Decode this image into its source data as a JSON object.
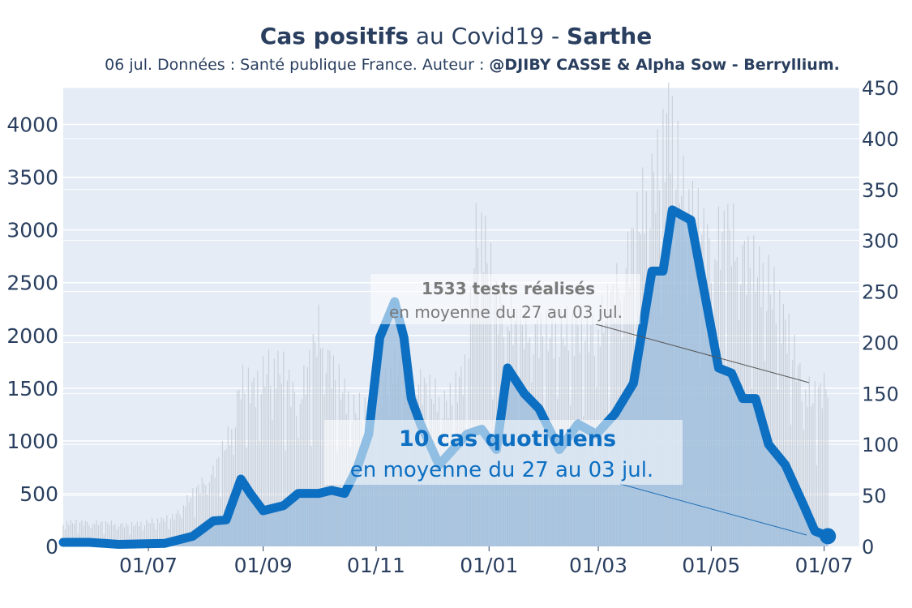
{
  "header": {
    "title_bold1": "Cas positifs",
    "title_mid": " au Covid19 - ",
    "title_bold2": "Sarthe",
    "subtitle_plain": "06 jul. Données : Santé publique France. Auteur : ",
    "subtitle_bold": "@DJIBY CASSE & Alpha Sow - Berryllium."
  },
  "annotations": {
    "tests": {
      "value_text": "1533 tests réalisés",
      "sub_text": "en moyenne du 27 au 03 jul."
    },
    "cases": {
      "value_text": "10 cas quotidiens",
      "sub_text": "en moyenne du 27 au 03 jul."
    }
  },
  "colors": {
    "plot_bg": "#e5ecf6",
    "grid": "#ffffff",
    "tests_bars": "#c8ced6",
    "cases_line": "#0d6fc2",
    "cases_fill": "#9bbcdc",
    "text": "#2a3f5f"
  },
  "chart_data": {
    "type": "line",
    "x_tick_labels": [
      "01/07",
      "01/09",
      "01/11",
      "01/01",
      "01/03",
      "01/05",
      "01/07"
    ],
    "x_tick_dates": [
      "2020-07-01",
      "2020-09-01",
      "2020-11-01",
      "2021-01-01",
      "2021-03-01",
      "2021-05-01",
      "2021-07-01"
    ],
    "x_range": [
      "2020-05-16",
      "2021-07-20"
    ],
    "y_left": {
      "range": [
        0,
        4350
      ],
      "ticks": [
        0,
        500,
        1000,
        1500,
        2000,
        2500,
        3000,
        3500,
        4000
      ]
    },
    "y_right": {
      "range": [
        0,
        450
      ],
      "ticks": [
        0,
        50,
        100,
        150,
        200,
        250,
        300,
        350,
        400,
        450
      ]
    },
    "grid": true,
    "series": [
      {
        "name": "Tests",
        "axis": "left",
        "style": "bars",
        "points": [
          [
            "2020-05-16",
            230
          ],
          [
            "2020-06-10",
            220
          ],
          [
            "2020-06-20",
            200
          ],
          [
            "2020-07-01",
            230
          ],
          [
            "2020-07-15",
            280
          ],
          [
            "2020-07-25",
            500
          ],
          [
            "2020-08-05",
            700
          ],
          [
            "2020-08-15",
            1100
          ],
          [
            "2020-08-20",
            1550
          ],
          [
            "2020-08-28",
            1500
          ],
          [
            "2020-09-05",
            1720
          ],
          [
            "2020-09-12",
            1650
          ],
          [
            "2020-09-20",
            1350
          ],
          [
            "2020-10-01",
            2050
          ],
          [
            "2020-10-10",
            1600
          ],
          [
            "2020-10-20",
            1300
          ],
          [
            "2020-11-01",
            1300
          ],
          [
            "2020-11-08",
            1700
          ],
          [
            "2020-11-20",
            1600
          ],
          [
            "2020-12-05",
            1400
          ],
          [
            "2020-12-10",
            1350
          ],
          [
            "2020-12-20",
            1700
          ],
          [
            "2020-12-26",
            3200
          ],
          [
            "2021-01-05",
            2300
          ],
          [
            "2021-01-15",
            2100
          ],
          [
            "2021-02-01",
            2000
          ],
          [
            "2021-02-15",
            2050
          ],
          [
            "2021-03-01",
            2050
          ],
          [
            "2021-03-15",
            2600
          ],
          [
            "2021-03-28",
            3400
          ],
          [
            "2021-04-04",
            3600
          ],
          [
            "2021-04-08",
            4120
          ],
          [
            "2021-04-15",
            3400
          ],
          [
            "2021-04-22",
            3100
          ],
          [
            "2021-05-01",
            2800
          ],
          [
            "2021-05-10",
            3000
          ],
          [
            "2021-05-20",
            2700
          ],
          [
            "2021-06-01",
            2500
          ],
          [
            "2021-06-10",
            2100
          ],
          [
            "2021-06-20",
            1500
          ],
          [
            "2021-06-25",
            1400
          ],
          [
            "2021-07-03",
            1530
          ]
        ]
      },
      {
        "name": "Cas positifs",
        "axis": "right",
        "style": "filled-line",
        "points": [
          [
            "2020-05-16",
            4
          ],
          [
            "2020-05-30",
            4
          ],
          [
            "2020-06-15",
            2
          ],
          [
            "2020-07-10",
            3
          ],
          [
            "2020-07-25",
            10
          ],
          [
            "2020-08-05",
            25
          ],
          [
            "2020-08-12",
            26
          ],
          [
            "2020-08-20",
            66
          ],
          [
            "2020-08-25",
            52
          ],
          [
            "2020-09-01",
            35
          ],
          [
            "2020-09-12",
            40
          ],
          [
            "2020-09-20",
            52
          ],
          [
            "2020-10-01",
            52
          ],
          [
            "2020-10-08",
            55
          ],
          [
            "2020-10-15",
            52
          ],
          [
            "2020-10-22",
            78
          ],
          [
            "2020-10-28",
            110
          ],
          [
            "2020-11-03",
            205
          ],
          [
            "2020-11-11",
            240
          ],
          [
            "2020-11-16",
            205
          ],
          [
            "2020-11-20",
            145
          ],
          [
            "2020-11-25",
            120
          ],
          [
            "2020-12-05",
            80
          ],
          [
            "2020-12-10",
            90
          ],
          [
            "2020-12-20",
            110
          ],
          [
            "2020-12-28",
            115
          ],
          [
            "2021-01-05",
            95
          ],
          [
            "2021-01-11",
            175
          ],
          [
            "2021-01-20",
            150
          ],
          [
            "2021-01-28",
            135
          ],
          [
            "2021-02-08",
            95
          ],
          [
            "2021-02-18",
            120
          ],
          [
            "2021-02-28",
            110
          ],
          [
            "2021-03-10",
            130
          ],
          [
            "2021-03-20",
            160
          ],
          [
            "2021-03-30",
            270
          ],
          [
            "2021-04-05",
            270
          ],
          [
            "2021-04-10",
            330
          ],
          [
            "2021-04-20",
            320
          ],
          [
            "2021-05-05",
            175
          ],
          [
            "2021-05-12",
            170
          ],
          [
            "2021-05-18",
            145
          ],
          [
            "2021-05-25",
            145
          ],
          [
            "2021-06-01",
            100
          ],
          [
            "2021-06-10",
            80
          ],
          [
            "2021-06-20",
            40
          ],
          [
            "2021-06-26",
            15
          ],
          [
            "2021-07-03",
            10
          ]
        ]
      }
    ]
  }
}
